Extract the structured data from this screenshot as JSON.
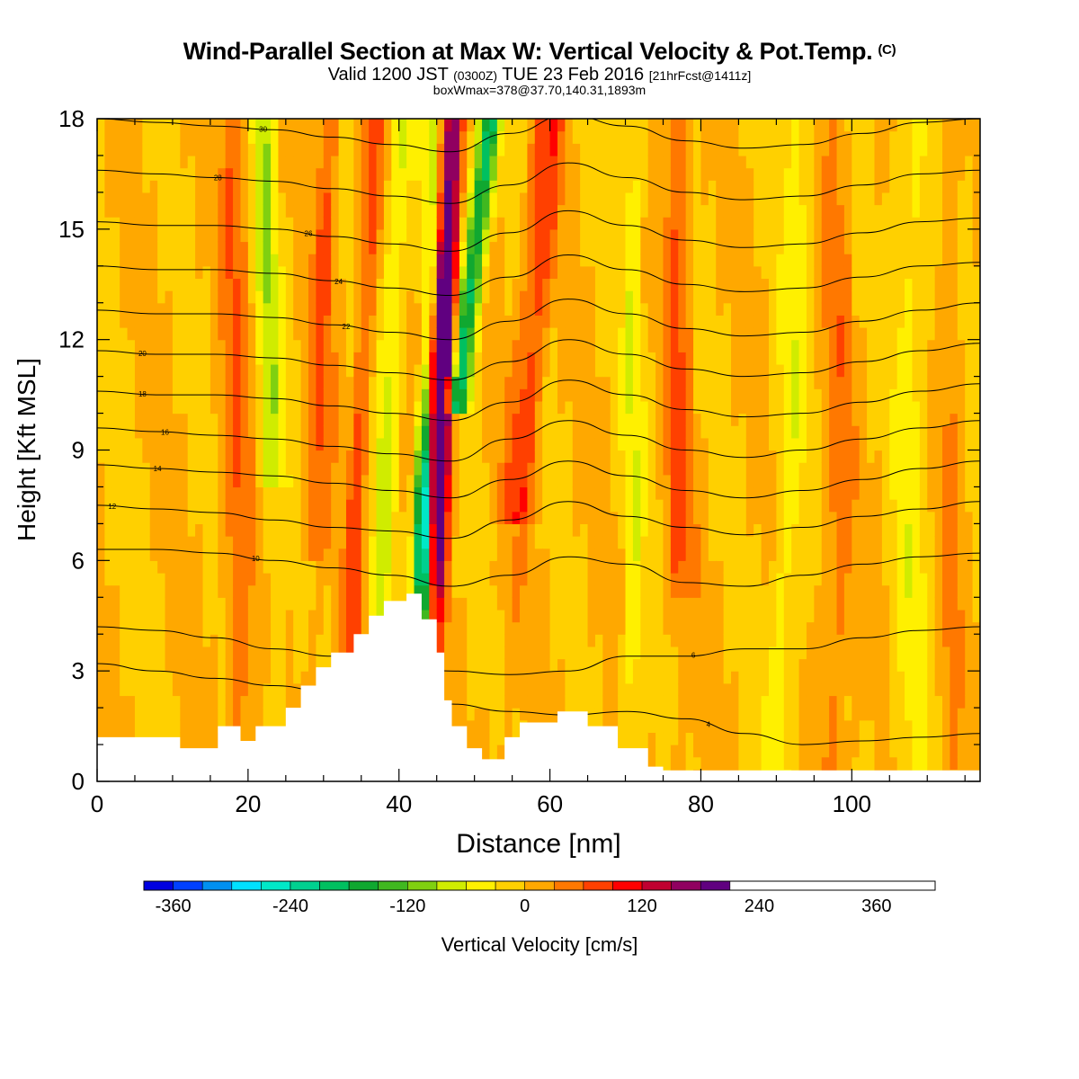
{
  "title": {
    "main": "Wind-Parallel Section at Max W: Vertical Velocity & Pot.Temp.",
    "copyright": "(C)",
    "valid_prefix": "Valid 1200 JST",
    "valid_z": "(0300Z)",
    "valid_date": "TUE 23 Feb 2016",
    "valid_fcst": "[21hrFcst@1411z]",
    "boxwmax": "boxWmax=378@37.70,140.31,1893m"
  },
  "chart_data": {
    "type": "heatmap",
    "xlabel": "Distance [nm]",
    "ylabel": "Height [Kft MSL]",
    "xlim": [
      0,
      117
    ],
    "ylim": [
      0,
      18
    ],
    "x_ticks": [
      "0",
      "20",
      "40",
      "60",
      "80",
      "100"
    ],
    "y_ticks": [
      "0",
      "3",
      "6",
      "9",
      "12",
      "15",
      "18"
    ],
    "colorbar": {
      "label": "Vertical Velocity [cm/s]",
      "tick_labels": [
        "-360",
        "-240",
        "-120",
        "0",
        "120",
        "240",
        "360"
      ],
      "tick_values": [
        -360,
        -240,
        -120,
        0,
        120,
        240,
        360
      ],
      "levels": [
        -390,
        -360,
        -330,
        -300,
        -270,
        -240,
        -210,
        -180,
        -150,
        -120,
        -90,
        -60,
        -30,
        0,
        30,
        60,
        90,
        120,
        150,
        180,
        210,
        240,
        270,
        300,
        330,
        360,
        390,
        420
      ],
      "colors": [
        "#0000e0",
        "#0040ff",
        "#0090f0",
        "#00e0ff",
        "#00e8c8",
        "#00d090",
        "#00c060",
        "#10a830",
        "#40b820",
        "#80d010",
        "#d0ec00",
        "#fff000",
        "#ffd000",
        "#ffa800",
        "#ff7800",
        "#ff4000",
        "#ff0000",
        "#c00030",
        "#900060",
        "#600080"
      ]
    },
    "max_w": {
      "value": 378,
      "lat": 37.7,
      "lon": 140.31,
      "height_m": 1893
    },
    "terrain_kft": {
      "x": [
        0,
        11,
        11,
        16,
        16,
        19,
        19,
        21,
        21,
        25,
        25,
        27,
        27,
        29,
        29,
        31,
        31,
        34,
        34,
        36,
        36,
        38,
        38,
        41,
        41,
        43,
        43,
        45,
        45,
        46,
        46,
        47,
        47,
        49,
        49,
        51,
        51,
        54,
        54,
        56,
        56,
        61,
        61,
        65,
        65,
        69,
        69,
        73,
        73,
        75,
        75,
        117
      ],
      "y": [
        1.2,
        1.2,
        0.9,
        0.9,
        1.5,
        1.5,
        1.1,
        1.1,
        1.5,
        1.5,
        2.0,
        2.0,
        2.6,
        2.6,
        3.1,
        3.1,
        3.5,
        3.5,
        4.0,
        4.0,
        4.5,
        4.5,
        4.9,
        4.9,
        5.1,
        5.1,
        4.4,
        4.4,
        3.5,
        3.5,
        2.2,
        2.2,
        1.5,
        1.5,
        0.9,
        0.9,
        0.6,
        0.6,
        1.2,
        1.2,
        1.6,
        1.6,
        1.9,
        1.9,
        1.5,
        1.5,
        0.9,
        0.9,
        0.4,
        0.4,
        0.3,
        0.3
      ]
    },
    "theta_contours": [
      {
        "label": "4",
        "label_x": 81,
        "y": [
          3.2,
          3.0,
          2.8,
          2.6,
          2.4,
          2.3,
          2.1,
          1.9,
          1.8,
          1.9,
          1.7,
          1.3,
          1.0,
          1.1,
          1.2,
          1.3
        ]
      },
      {
        "label": "6",
        "label_x": 79,
        "y": [
          4.2,
          4.1,
          3.9,
          3.6,
          3.4,
          3.2,
          3.0,
          2.9,
          3.0,
          3.4,
          3.4,
          3.6,
          3.6,
          3.9,
          4.1,
          4.2
        ]
      },
      {
        "label": "10",
        "label_x": 21,
        "y": [
          6.3,
          6.3,
          6.2,
          6.0,
          5.8,
          5.6,
          5.3,
          5.6,
          6.1,
          5.9,
          5.4,
          5.3,
          5.6,
          5.9,
          6.1,
          6.2
        ]
      },
      {
        "label": "12",
        "label_x": 2,
        "y": [
          7.5,
          7.4,
          7.3,
          7.1,
          6.9,
          6.8,
          6.6,
          7.1,
          7.6,
          7.2,
          6.9,
          6.7,
          6.9,
          7.2,
          7.4,
          7.6
        ]
      },
      {
        "label": "14",
        "label_x": 8,
        "y": [
          8.6,
          8.5,
          8.4,
          8.3,
          8.1,
          7.9,
          7.7,
          8.2,
          8.7,
          8.3,
          7.9,
          7.7,
          7.9,
          8.2,
          8.5,
          8.7
        ]
      },
      {
        "label": "16",
        "label_x": 9,
        "y": [
          9.6,
          9.5,
          9.4,
          9.3,
          9.1,
          8.9,
          8.7,
          9.3,
          9.8,
          9.4,
          9.0,
          8.8,
          9.0,
          9.3,
          9.6,
          9.8
        ]
      },
      {
        "label": "18",
        "label_x": 6,
        "y": [
          10.6,
          10.5,
          10.5,
          10.4,
          10.2,
          10.0,
          9.8,
          10.3,
          10.9,
          10.5,
          10.1,
          9.9,
          10.0,
          10.3,
          10.6,
          10.8
        ]
      },
      {
        "label": "20",
        "label_x": 6,
        "y": [
          11.7,
          11.6,
          11.6,
          11.5,
          11.3,
          11.1,
          10.9,
          11.4,
          12.0,
          11.6,
          11.2,
          11.0,
          11.1,
          11.4,
          11.7,
          11.9
        ]
      },
      {
        "label": "22",
        "label_x": 33,
        "y": [
          12.8,
          12.7,
          12.7,
          12.6,
          12.4,
          12.2,
          12.0,
          12.5,
          13.1,
          12.7,
          12.3,
          12.1,
          12.2,
          12.5,
          12.8,
          13.0
        ]
      },
      {
        "label": "24",
        "label_x": 32,
        "y": [
          14.0,
          13.9,
          13.9,
          13.8,
          13.6,
          13.4,
          13.2,
          13.7,
          14.3,
          13.9,
          13.5,
          13.3,
          13.4,
          13.7,
          14.0,
          14.1
        ]
      },
      {
        "label": "26",
        "label_x": 28,
        "y": [
          15.2,
          15.1,
          15.1,
          15.0,
          14.8,
          14.6,
          14.4,
          14.9,
          15.5,
          15.1,
          14.7,
          14.5,
          14.6,
          14.9,
          15.2,
          15.3
        ]
      },
      {
        "label": "28",
        "label_x": 16,
        "y": [
          16.6,
          16.5,
          16.4,
          16.3,
          16.1,
          15.9,
          15.7,
          16.2,
          16.8,
          16.4,
          16.0,
          15.8,
          15.9,
          16.2,
          16.5,
          16.6
        ]
      },
      {
        "label": "30",
        "label_x": 22,
        "y": [
          18.0,
          17.9,
          17.8,
          17.7,
          17.5,
          17.3,
          17.1,
          17.6,
          18.1,
          17.8,
          17.4,
          17.2,
          17.3,
          17.6,
          17.9,
          18.0
        ]
      }
    ]
  }
}
